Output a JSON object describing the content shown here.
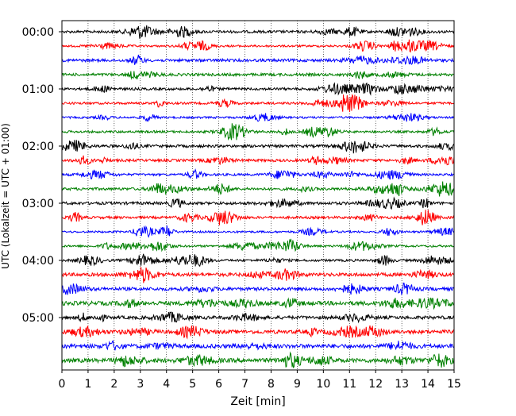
{
  "chart_data": {
    "type": "line",
    "title": "",
    "xlabel": "Zeit  [min]",
    "ylabel": "UTC (Lokalzeit = UTC + 01:00)",
    "xlim": [
      0,
      15
    ],
    "x_ticks": [
      0,
      1,
      2,
      3,
      4,
      5,
      6,
      7,
      8,
      9,
      10,
      11,
      12,
      13,
      14,
      15
    ],
    "x_tick_labels": [
      "0",
      "1",
      "2",
      "3",
      "4",
      "5",
      "6",
      "7",
      "8",
      "9",
      "10",
      "11",
      "12",
      "13",
      "14",
      "15"
    ],
    "y_tick_labels": [
      "00:00",
      "01:00",
      "02:00",
      "03:00",
      "04:00",
      "05:00"
    ],
    "y_tick_times": [
      "00:00",
      "01:00",
      "02:00",
      "03:00",
      "04:00",
      "05:00"
    ],
    "trace_interval_min": 15,
    "trace_start_times": [
      "00:00",
      "00:15",
      "00:30",
      "00:45",
      "01:00",
      "01:15",
      "01:30",
      "01:45",
      "02:00",
      "02:15",
      "02:30",
      "02:45",
      "03:00",
      "03:15",
      "03:30",
      "03:45",
      "04:00",
      "04:15",
      "04:30",
      "04:45",
      "05:00",
      "05:15",
      "05:30",
      "05:45"
    ],
    "trace_color_cycle": [
      "#000000",
      "#ff0000",
      "#0000ff",
      "#008000"
    ],
    "grid": "vertical dotted at each minute",
    "legend": "none"
  }
}
